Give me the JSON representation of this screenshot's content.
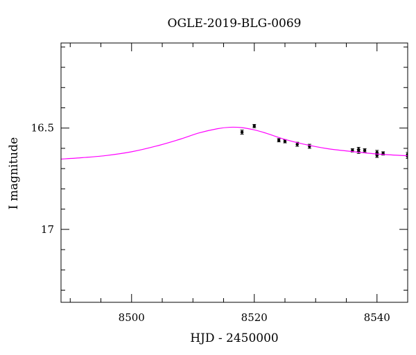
{
  "chart_data": {
    "type": "scatter",
    "title": "OGLE-2019-BLG-0069",
    "xlabel": "HJD - 2450000",
    "ylabel": "I magnitude",
    "xlim": [
      8488.5,
      8545
    ],
    "ylim": [
      17.36,
      16.08
    ],
    "y_inverted": true,
    "x_ticks": [
      8500,
      8520,
      8540
    ],
    "x_tick_labels": [
      "8500",
      "8520",
      "8540"
    ],
    "y_ticks": [
      16.5,
      17
    ],
    "y_tick_labels": [
      "16.5",
      "17"
    ],
    "grid": false,
    "series": [
      {
        "kind": "points",
        "color": "#000000",
        "points": [
          {
            "x": 8518.0,
            "y": 16.52,
            "err": 0.01
          },
          {
            "x": 8520.0,
            "y": 16.49,
            "err": 0.008
          },
          {
            "x": 8524.0,
            "y": 16.56,
            "err": 0.008
          },
          {
            "x": 8525.0,
            "y": 16.565,
            "err": 0.008
          },
          {
            "x": 8527.0,
            "y": 16.58,
            "err": 0.01
          },
          {
            "x": 8529.0,
            "y": 16.59,
            "err": 0.01
          },
          {
            "x": 8536.0,
            "y": 16.61,
            "err": 0.008
          },
          {
            "x": 8537.0,
            "y": 16.605,
            "err": 0.01
          },
          {
            "x": 8537.0,
            "y": 16.615,
            "err": 0.01
          },
          {
            "x": 8538.0,
            "y": 16.61,
            "err": 0.008
          },
          {
            "x": 8540.0,
            "y": 16.62,
            "err": 0.01
          },
          {
            "x": 8540.0,
            "y": 16.635,
            "err": 0.01
          },
          {
            "x": 8541.0,
            "y": 16.625,
            "err": 0.008
          },
          {
            "x": 8545.0,
            "y": 16.63,
            "err": 0.01
          },
          {
            "x": 8545.0,
            "y": 16.64,
            "err": 0.01
          }
        ]
      },
      {
        "kind": "line",
        "color": "#ff00ff",
        "points": [
          {
            "x": 8488.5,
            "y": 16.653
          },
          {
            "x": 8492,
            "y": 16.646
          },
          {
            "x": 8496,
            "y": 16.635
          },
          {
            "x": 8500,
            "y": 16.617
          },
          {
            "x": 8504,
            "y": 16.589
          },
          {
            "x": 8508,
            "y": 16.554
          },
          {
            "x": 8511,
            "y": 16.524
          },
          {
            "x": 8514,
            "y": 16.503
          },
          {
            "x": 8516,
            "y": 16.496
          },
          {
            "x": 8518,
            "y": 16.498
          },
          {
            "x": 8520,
            "y": 16.509
          },
          {
            "x": 8522,
            "y": 16.526
          },
          {
            "x": 8525,
            "y": 16.556
          },
          {
            "x": 8528,
            "y": 16.579
          },
          {
            "x": 8532,
            "y": 16.602
          },
          {
            "x": 8536,
            "y": 16.616
          },
          {
            "x": 8540,
            "y": 16.628
          },
          {
            "x": 8545,
            "y": 16.637
          }
        ]
      }
    ]
  }
}
